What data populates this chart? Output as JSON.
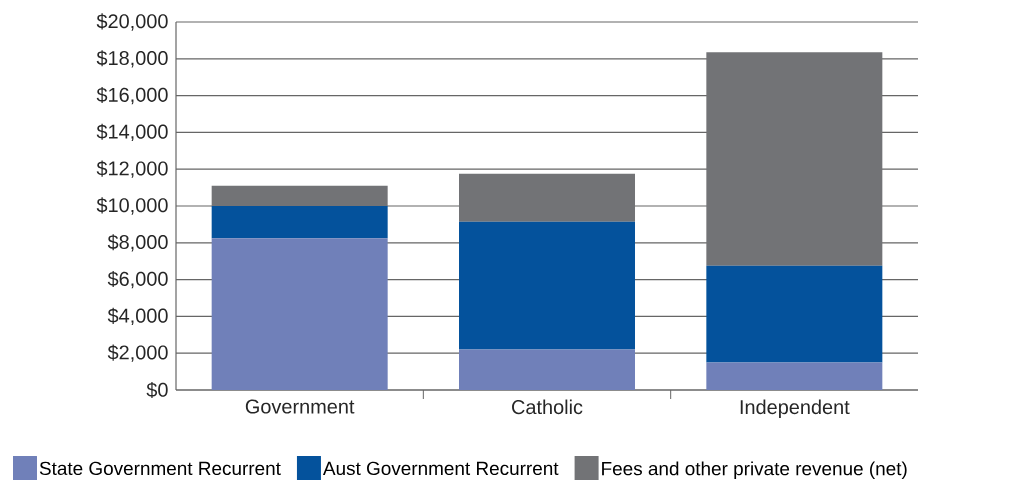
{
  "chart_data": {
    "type": "bar",
    "stacked": true,
    "categories": [
      "Government",
      "Catholic",
      "Independent"
    ],
    "series": [
      {
        "name": "State Government Recurrent",
        "color": "#7080b9",
        "values": [
          8250,
          2200,
          1500
        ]
      },
      {
        "name": "Aust Government Recurrent",
        "color": "#04529c",
        "values": [
          1750,
          6950,
          5250
        ]
      },
      {
        "name": "Fees and other private revenue (net)",
        "color": "#727376",
        "values": [
          1100,
          2600,
          11600
        ]
      }
    ],
    "ylim": [
      0,
      20000
    ],
    "yticks": [
      {
        "value": 0,
        "label": "$0"
      },
      {
        "value": 2000,
        "label": "$2,000"
      },
      {
        "value": 4000,
        "label": "$4,000"
      },
      {
        "value": 6000,
        "label": "$6,000"
      },
      {
        "value": 8000,
        "label": "$8,000"
      },
      {
        "value": 10000,
        "label": "$10,000"
      },
      {
        "value": 12000,
        "label": "$12,000"
      },
      {
        "value": 14000,
        "label": "$14,000"
      },
      {
        "value": 16000,
        "label": "$16,000"
      },
      {
        "value": 18000,
        "label": "$18,000"
      },
      {
        "value": 20000,
        "label": "$20,000"
      }
    ],
    "grid": "y",
    "legend": "bottom"
  }
}
